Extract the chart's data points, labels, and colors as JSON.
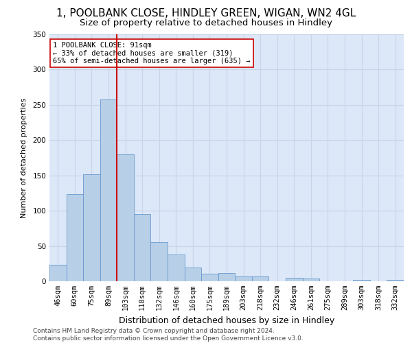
{
  "title1": "1, POOLBANK CLOSE, HINDLEY GREEN, WIGAN, WN2 4GL",
  "title2": "Size of property relative to detached houses in Hindley",
  "xlabel": "Distribution of detached houses by size in Hindley",
  "ylabel": "Number of detached properties",
  "categories": [
    "46sqm",
    "60sqm",
    "75sqm",
    "89sqm",
    "103sqm",
    "118sqm",
    "132sqm",
    "146sqm",
    "160sqm",
    "175sqm",
    "189sqm",
    "203sqm",
    "218sqm",
    "232sqm",
    "246sqm",
    "261sqm",
    "275sqm",
    "289sqm",
    "303sqm",
    "318sqm",
    "332sqm"
  ],
  "values": [
    23,
    123,
    152,
    258,
    180,
    95,
    55,
    38,
    19,
    11,
    12,
    7,
    7,
    0,
    5,
    4,
    0,
    0,
    2,
    0,
    2
  ],
  "bar_color": "#b8cfe8",
  "bar_edge_color": "#6699cc",
  "vline_x_index": 3.5,
  "vline_color": "#cc0000",
  "annotation_text": "1 POOLBANK CLOSE: 91sqm\n← 33% of detached houses are smaller (319)\n65% of semi-detached houses are larger (635) →",
  "annotation_box_color": "#ffffff",
  "annotation_box_edge_color": "#cc0000",
  "ylim": [
    0,
    350
  ],
  "yticks": [
    0,
    50,
    100,
    150,
    200,
    250,
    300,
    350
  ],
  "grid_color": "#c8d4e8",
  "background_color": "#dce8f8",
  "footer_text": "Contains HM Land Registry data © Crown copyright and database right 2024.\nContains public sector information licensed under the Open Government Licence v3.0.",
  "title1_fontsize": 11,
  "title2_fontsize": 9.5,
  "xlabel_fontsize": 9,
  "ylabel_fontsize": 8,
  "tick_fontsize": 7.5,
  "annotation_fontsize": 7.5,
  "footer_fontsize": 6.5
}
